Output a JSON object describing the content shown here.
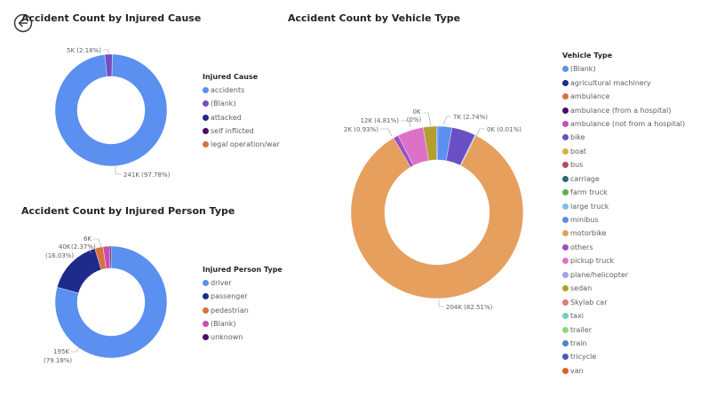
{
  "navigation": {
    "back_icon": "back-arrow-circle-icon"
  },
  "charts": {
    "cause": {
      "title": "Accident Count by Injured Cause",
      "legend_title": "Injured Cause",
      "labels": {
        "small": "5K (2.18%)",
        "large": "241K (97.78%)"
      }
    },
    "person": {
      "title": "Accident Count by Injured Person Type",
      "legend_title": "Injured Person Type",
      "labels": {
        "six": "6K",
        "forty": "40K",
        "forty_pct": "(16.03%)",
        "pct_237": "(2.37%)",
        "big": "195K",
        "big_pct": "(79.18%)"
      }
    },
    "vehicle": {
      "title": "Accident Count by Vehicle Type",
      "legend_title": "Vehicle Type",
      "labels": {
        "blank": "7K (2.74%)",
        "large_truck": "0K (0.01%)",
        "motorbike": "204K (82.51%)",
        "others": "2K (0.93%)",
        "pickup": "12K (4.81%)",
        "tricycle_a": "0K",
        "tricycle_b": "(0%)"
      }
    }
  },
  "chart_data": [
    {
      "type": "pie",
      "subtype": "donut",
      "title": "Accident Count by Injured Cause",
      "legend_title": "Injured Cause",
      "legend_position": "right",
      "categories": [
        "accidents",
        "(Blank)",
        "attacked",
        "self inflicted",
        "legal operation/war"
      ],
      "values": [
        241000,
        5000,
        50,
        20,
        5
      ],
      "percentages": [
        97.78,
        2.18,
        0.02,
        0.01,
        0.0
      ],
      "colors": [
        "#5B8FF0",
        "#744EC2",
        "#1F2A8A",
        "#4A0D67",
        "#D9703F"
      ],
      "data_labels": [
        "241K (97.78%)",
        "5K (2.18%)",
        "",
        "",
        ""
      ]
    },
    {
      "type": "pie",
      "subtype": "donut",
      "title": "Accident Count by Injured Person Type",
      "legend_title": "Injured Person Type",
      "legend_position": "right",
      "categories": [
        "driver",
        "passenger",
        "pedestrian",
        "(Blank)",
        "unknown"
      ],
      "values": [
        195000,
        40000,
        6000,
        4500,
        1000
      ],
      "percentages": [
        79.18,
        16.03,
        2.37,
        1.9,
        0.4
      ],
      "colors": [
        "#5B8FF0",
        "#1F2A8A",
        "#D9703F",
        "#C84FB0",
        "#4A0D67"
      ],
      "data_labels": [
        "195K (79.18%)",
        "40K (16.03%)",
        "6K (2.37%)",
        "",
        ""
      ]
    },
    {
      "type": "pie",
      "subtype": "donut",
      "title": "Accident Count by Vehicle Type",
      "legend_title": "Vehicle Type",
      "legend_position": "right",
      "categories": [
        "(Blank)",
        "agricultural machinery",
        "ambulance",
        "ambulance (from a hospital)",
        "ambulance (not from a hospital)",
        "bike",
        "boat",
        "bus",
        "carriage",
        "farm truck",
        "large truck",
        "minibus",
        "motorbike",
        "others",
        "pickup truck",
        "plane/helicopter",
        "sedan",
        "Skylab car",
        "taxi",
        "trailer",
        "train",
        "tricycle",
        "van"
      ],
      "values": [
        7000,
        0,
        0,
        0,
        0,
        11000,
        0,
        0,
        0,
        0,
        25,
        700,
        204000,
        2000,
        12000,
        0,
        6000,
        0,
        0,
        0,
        0,
        10,
        0
      ],
      "percentages": [
        2.74,
        0,
        0,
        0,
        0,
        4.4,
        0,
        0,
        0,
        0,
        0.01,
        0.3,
        82.51,
        0.93,
        4.81,
        0,
        2.4,
        0,
        0,
        0,
        0,
        0.0,
        0
      ],
      "colors": [
        "#5B8FF0",
        "#1F2A8A",
        "#D9703F",
        "#4A0D67",
        "#C84FB0",
        "#6A4FC4",
        "#D4B23F",
        "#B84A5A",
        "#2E6B63",
        "#5DAE52",
        "#7FC0E8",
        "#5A8CE8",
        "#E79F5E",
        "#9A4FC4",
        "#DC72C8",
        "#A79CF0",
        "#B39E2E",
        "#E07B7B",
        "#72D0C0",
        "#8ED77A",
        "#4A86CC",
        "#4B5AB8",
        "#D9622A"
      ],
      "data_labels": [
        "7K (2.74%)",
        "",
        "",
        "",
        "",
        "",
        "",
        "",
        "",
        "",
        "0K (0.01%)",
        "",
        "204K (82.51%)",
        "2K (0.93%)",
        "12K (4.81%)",
        "",
        "",
        "",
        "",
        "",
        "",
        "0K (0%)",
        ""
      ]
    }
  ]
}
